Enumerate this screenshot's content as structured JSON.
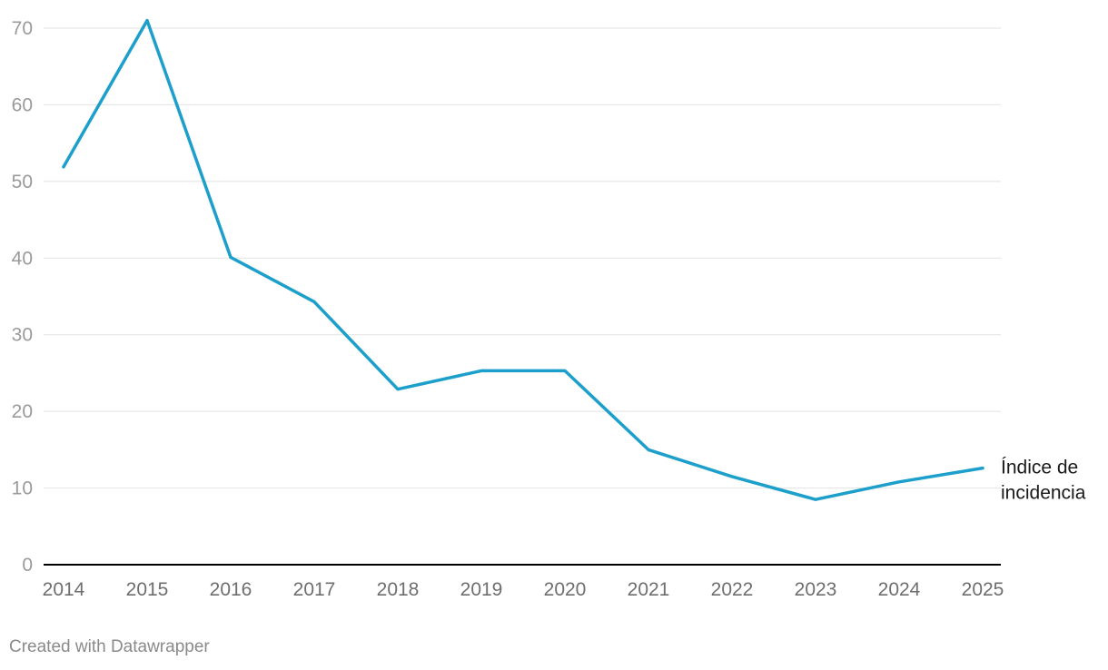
{
  "chart_data": {
    "type": "line",
    "x": [
      "2014",
      "2015",
      "2016",
      "2017",
      "2018",
      "2019",
      "2020",
      "2021",
      "2022",
      "2023",
      "2024",
      "2025"
    ],
    "series": [
      {
        "name": "Índice de incidencia",
        "label_lines": [
          "Índice de",
          "incidencia"
        ],
        "values": [
          51.9,
          71.0,
          40.1,
          34.3,
          22.9,
          25.3,
          25.3,
          15.0,
          11.5,
          8.5,
          10.8,
          12.6
        ],
        "color": "#1d9fcb"
      }
    ],
    "yticks": [
      0,
      10,
      20,
      30,
      40,
      50,
      60,
      70
    ],
    "ylim": [
      0,
      70
    ],
    "grid": true,
    "legend": "direct-label-right",
    "title": "",
    "xlabel": "",
    "ylabel": ""
  },
  "footer": {
    "credit": "Created with Datawrapper"
  }
}
